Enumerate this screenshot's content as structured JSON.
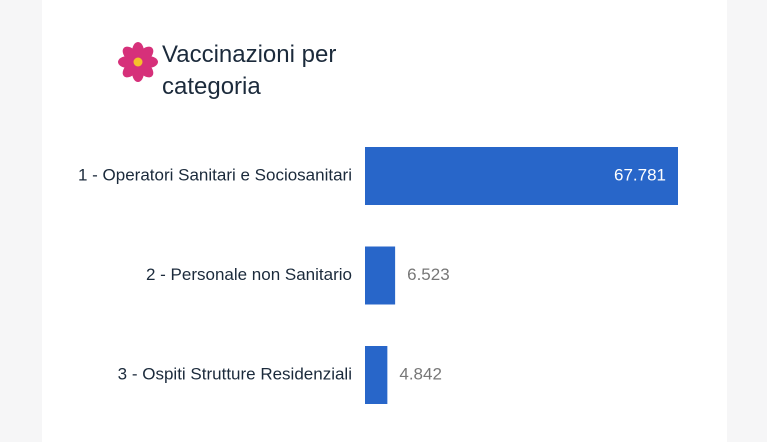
{
  "chart_data": {
    "type": "bar",
    "orientation": "horizontal",
    "title": "Vaccinazioni per categoria",
    "categories": [
      "1 - Operatori Sanitari e Sociosanitari",
      "2 - Personale non Sanitario",
      "3 - Ospiti Strutture Residenziali"
    ],
    "values": [
      67781,
      6523,
      4842
    ],
    "value_labels": [
      "67.781",
      "6.523",
      "4.842"
    ],
    "color": "#2866c9"
  }
}
